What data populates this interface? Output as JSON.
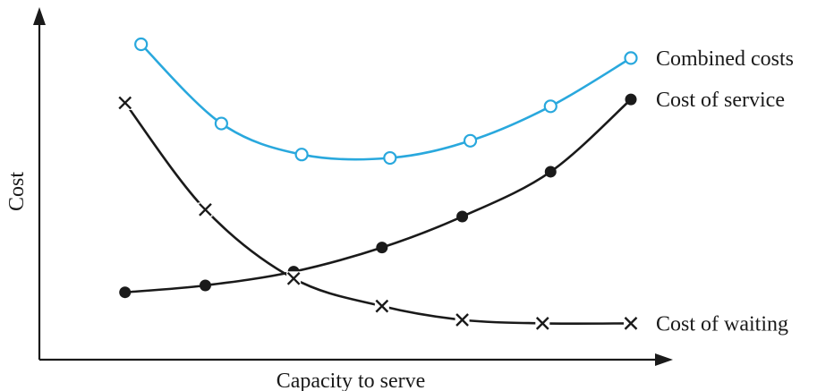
{
  "chart_data": {
    "type": "line",
    "xlabel": "Capacity to serve",
    "ylabel": "Cost",
    "x_ticks_shown": false,
    "y_ticks_shown": false,
    "grid": false,
    "legend": "inline-right",
    "series": [
      {
        "name": "Combined costs",
        "marker": "open-circle",
        "color": "#29a8dd",
        "x": [
          1.2,
          2.2,
          3.2,
          4.3,
          5.3,
          6.3,
          7.3
        ],
        "y": [
          9.0,
          6.7,
          5.8,
          5.7,
          6.2,
          7.2,
          8.6
        ]
      },
      {
        "name": "Cost of service",
        "marker": "filled-circle",
        "color": "#1a1a1a",
        "x": [
          1.0,
          2.0,
          3.1,
          4.2,
          5.2,
          6.3,
          7.3
        ],
        "y": [
          1.8,
          2.0,
          2.4,
          3.1,
          4.0,
          5.3,
          7.4
        ]
      },
      {
        "name": "Cost of waiting",
        "marker": "cross",
        "color": "#1a1a1a",
        "x": [
          1.0,
          2.0,
          3.1,
          4.2,
          5.2,
          6.2,
          7.3
        ],
        "y": [
          7.3,
          4.2,
          2.2,
          1.4,
          1.0,
          0.9,
          0.9
        ]
      }
    ]
  }
}
